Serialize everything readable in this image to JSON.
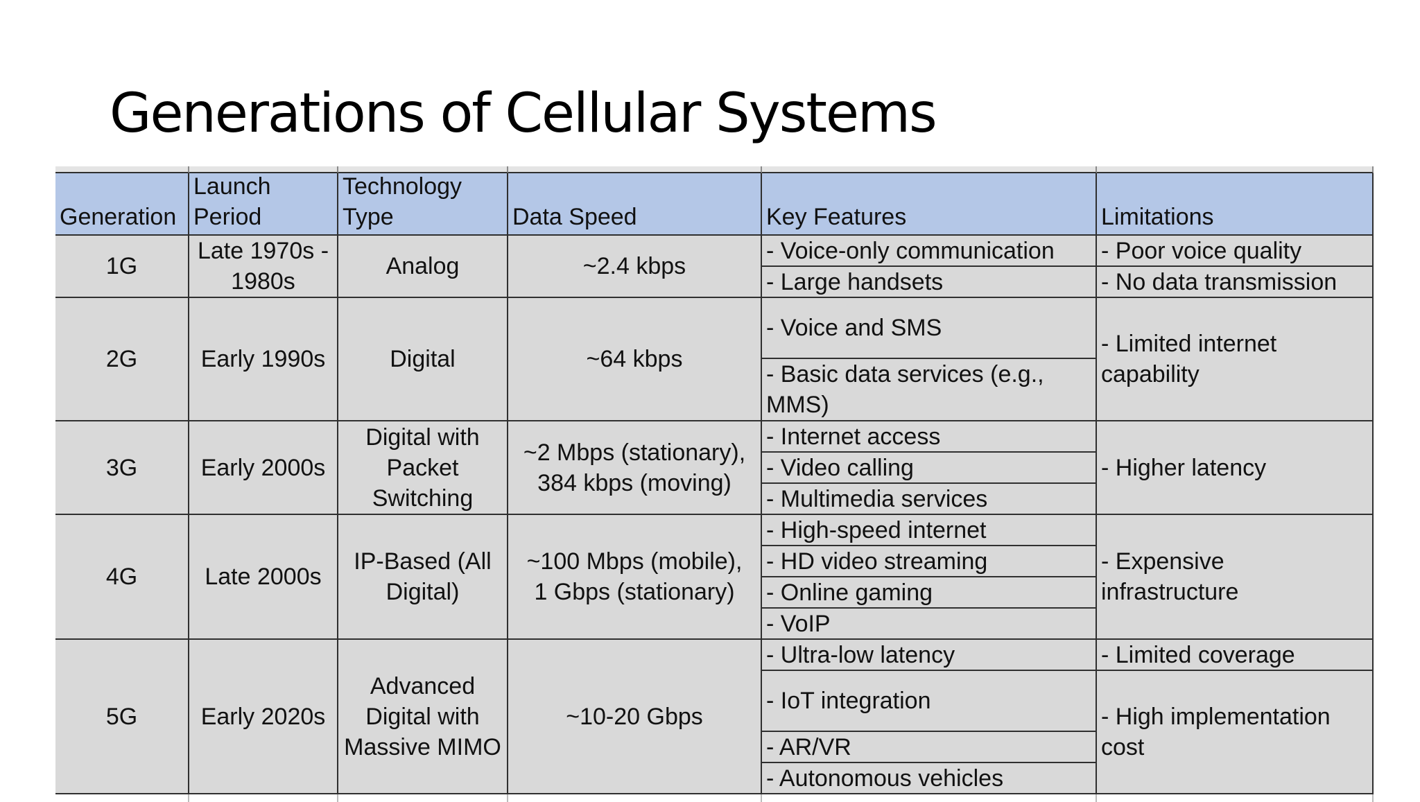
{
  "title": "Generations of Cellular Systems",
  "colors": {
    "header_bg": "#b4c7e7",
    "body_bg": "#d9d9d9",
    "border": "#2f2f2f"
  },
  "headers": {
    "generation": [
      "Generation"
    ],
    "launch_period": [
      "Launch",
      "Period"
    ],
    "technology_type": [
      "Technology",
      "Type"
    ],
    "data_speed": [
      "Data Speed"
    ],
    "key_features": [
      "Key Features"
    ],
    "limitations": [
      "Limitations"
    ]
  },
  "rows": [
    {
      "generation": "1G",
      "launch_period": [
        "Late 1970s -",
        "1980s"
      ],
      "technology_type": [
        "Analog"
      ],
      "data_speed": [
        "~2.4 kbps"
      ],
      "key_features": [
        [
          "- Voice-only communication"
        ],
        [
          "- Large handsets"
        ]
      ],
      "limitations": [
        [
          "- Poor voice quality"
        ],
        [
          "- No data transmission"
        ]
      ]
    },
    {
      "generation": "2G",
      "launch_period": [
        "Early 1990s"
      ],
      "technology_type": [
        "Digital"
      ],
      "data_speed": [
        "~64 kbps"
      ],
      "key_features": [
        [
          "- Voice and SMS"
        ],
        [
          "- Basic data services (e.g.,",
          "MMS)"
        ]
      ],
      "limitations": [
        [
          "- Limited internet",
          "capability"
        ]
      ]
    },
    {
      "generation": "3G",
      "launch_period": [
        "Early 2000s"
      ],
      "technology_type": [
        "Digital with",
        "Packet",
        "Switching"
      ],
      "data_speed": [
        "~2 Mbps (stationary),",
        "384 kbps (moving)"
      ],
      "key_features": [
        [
          "- Internet access"
        ],
        [
          "- Video calling"
        ],
        [
          "- Multimedia services"
        ]
      ],
      "limitations": [
        [
          "- Higher latency"
        ]
      ]
    },
    {
      "generation": "4G",
      "launch_period": [
        "Late 2000s"
      ],
      "technology_type": [
        "IP-Based (All",
        "Digital)"
      ],
      "data_speed": [
        "~100 Mbps (mobile),",
        "1 Gbps (stationary)"
      ],
      "key_features": [
        [
          "- High-speed internet"
        ],
        [
          "- HD video streaming"
        ],
        [
          "- Online gaming"
        ],
        [
          "- VoIP"
        ]
      ],
      "limitations": [
        [
          "- Expensive",
          "infrastructure"
        ]
      ]
    },
    {
      "generation": "5G",
      "launch_period": [
        "Early 2020s"
      ],
      "technology_type": [
        "Advanced",
        "Digital with",
        "Massive MIMO"
      ],
      "data_speed": [
        "~10-20 Gbps"
      ],
      "key_features": [
        [
          "- Ultra-low latency"
        ],
        [
          "- IoT integration"
        ],
        [
          "- AR/VR"
        ],
        [
          "- Autonomous vehicles"
        ]
      ],
      "limitations": [
        [
          "- Limited coverage"
        ],
        [
          "- High implementation",
          "cost"
        ]
      ]
    }
  ]
}
